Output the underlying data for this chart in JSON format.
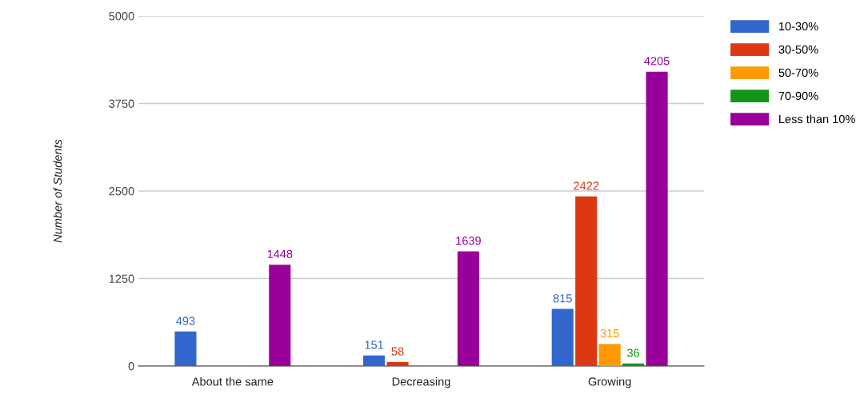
{
  "chart_data": {
    "type": "bar",
    "ylabel": "Number of Students",
    "categories": [
      "About the same",
      "Decreasing",
      "Growing"
    ],
    "series": [
      {
        "name": "10-30%",
        "color": "#3366cc",
        "values": [
          493,
          151,
          815
        ]
      },
      {
        "name": "30-50%",
        "color": "#dc3912",
        "values": [
          null,
          58,
          2422
        ]
      },
      {
        "name": "50-70%",
        "color": "#ff9900",
        "values": [
          null,
          null,
          315
        ]
      },
      {
        "name": "70-90%",
        "color": "#109618",
        "values": [
          null,
          null,
          36
        ]
      },
      {
        "name": "Less than 10%",
        "color": "#990099",
        "values": [
          1448,
          1639,
          4205
        ]
      }
    ],
    "ylim": [
      0,
      5000
    ],
    "yticks": [
      0,
      1250,
      2500,
      3750,
      5000
    ],
    "grid": "y",
    "legend": "top right",
    "data_labels": true
  }
}
